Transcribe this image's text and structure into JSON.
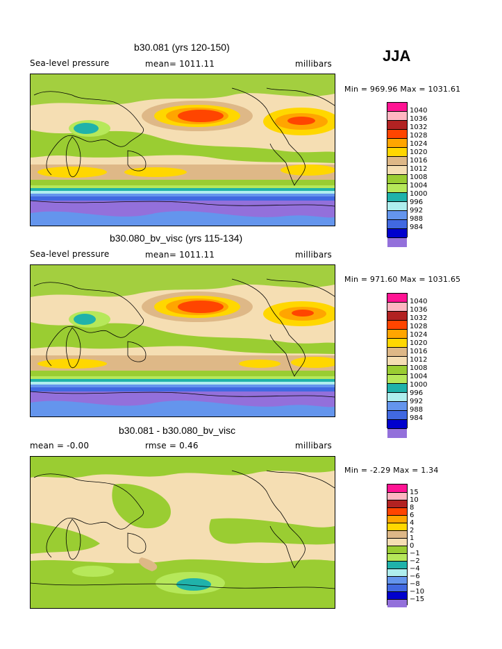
{
  "season": "JJA",
  "colors": {
    "ocean_base": "#f5deb3",
    "land_line": "#000000",
    "levels": [
      "#ff1493",
      "#ffb6c1",
      "#b22222",
      "#ff4500",
      "#ffa500",
      "#ffd700",
      "#deb887",
      "#f5deb3",
      "#9acd32",
      "#b6e85a",
      "#20b2aa",
      "#afeeee",
      "#6495ed",
      "#4169e1",
      "#0000cd",
      "#9370db"
    ]
  },
  "panels": [
    {
      "title": "b30.081 (yrs 120-150)",
      "left_label": "Sea-level pressure",
      "center_label": "mean= 1011.11",
      "right_label": "millibars",
      "minmax": "Min = 969.96 Max = 1031.61",
      "colorbar_labels": [
        "1040",
        "1036",
        "1032",
        "1028",
        "1024",
        "1020",
        "1016",
        "1012",
        "1008",
        "1004",
        "1000",
        "996",
        "992",
        "988",
        "984"
      ]
    },
    {
      "title": "b30.080_bv_visc (yrs 115-134)",
      "left_label": "Sea-level pressure",
      "center_label": "mean= 1011.11",
      "right_label": "millibars",
      "minmax": "Min = 971.60 Max = 1031.65",
      "colorbar_labels": [
        "1040",
        "1036",
        "1032",
        "1028",
        "1024",
        "1020",
        "1016",
        "1012",
        "1008",
        "1004",
        "1000",
        "996",
        "992",
        "988",
        "984"
      ]
    },
    {
      "title": "b30.081 - b30.080_bv_visc",
      "left_label": "mean =   -0.00",
      "center_label": "rmse =    0.46",
      "right_label": "millibars",
      "minmax": "Min =  -2.29 Max =    1.34",
      "colorbar_labels": [
        "15",
        "10",
        "8",
        "6",
        "4",
        "2",
        "1",
        "0",
        "−1",
        "−2",
        "−4",
        "−6",
        "−8",
        "−10",
        "−15"
      ]
    }
  ]
}
